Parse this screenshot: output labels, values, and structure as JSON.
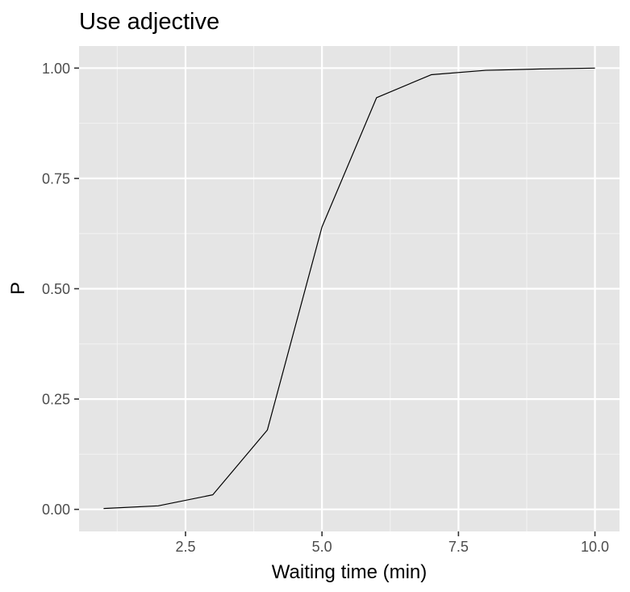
{
  "chart_data": {
    "type": "line",
    "title": "Use adjective",
    "xlabel": "Waiting time (min)",
    "ylabel": "P",
    "xlim": [
      0.55,
      10.45
    ],
    "ylim": [
      -0.05,
      1.05
    ],
    "x_ticks": [
      2.5,
      5.0,
      7.5,
      10.0
    ],
    "x_tick_labels": [
      "2.5",
      "5.0",
      "7.5",
      "10.0"
    ],
    "x_minor_ticks": [
      1.25,
      3.75,
      6.25,
      8.75
    ],
    "y_ticks": [
      0.0,
      0.25,
      0.5,
      0.75,
      1.0
    ],
    "y_tick_labels": [
      "0.00",
      "0.25",
      "0.50",
      "0.75",
      "1.00"
    ],
    "y_minor_ticks": [
      0.125,
      0.375,
      0.625,
      0.875
    ],
    "grid": true,
    "series": [
      {
        "x": [
          1,
          2,
          3,
          4,
          5,
          6,
          7,
          8,
          9,
          10
        ],
        "y": [
          0.002,
          0.008,
          0.033,
          0.18,
          0.64,
          0.933,
          0.985,
          0.995,
          0.998,
          1.0
        ]
      }
    ],
    "colors": {
      "panel_background": "#e5e5e5",
      "grid_major": "#ffffff",
      "grid_minor": "#f2f2f2",
      "line": "#000000",
      "tick_mark": "#333333",
      "tick_label": "#4d4d4d"
    }
  }
}
